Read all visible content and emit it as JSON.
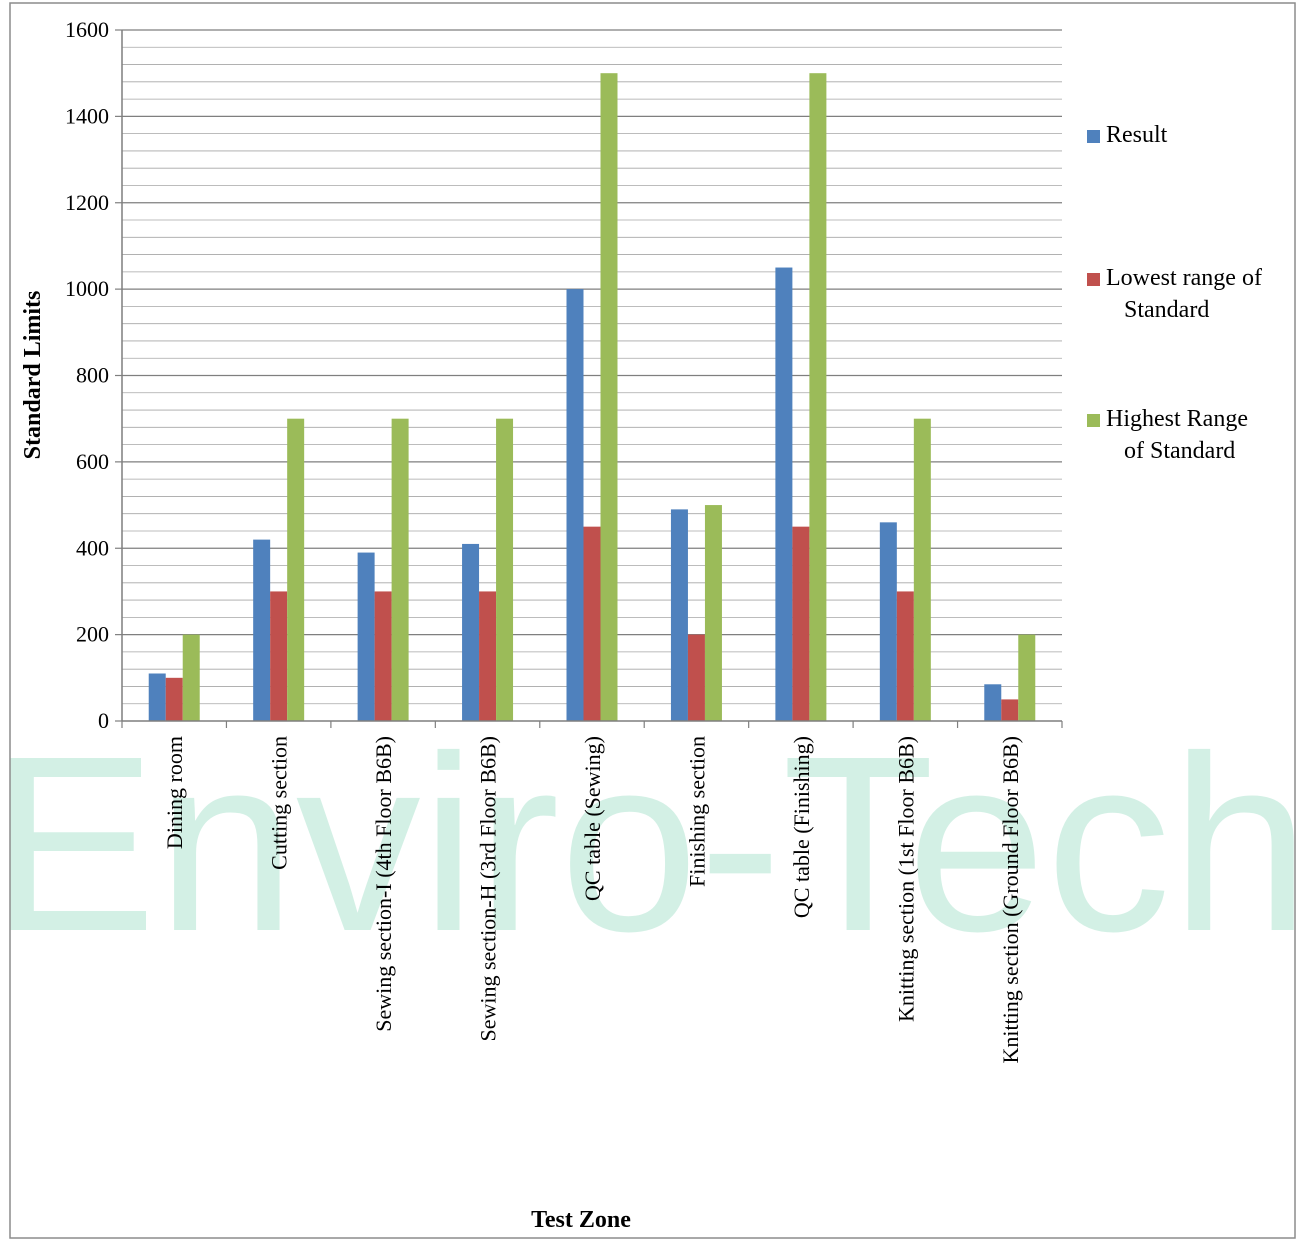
{
  "watermark": "Enviro-Tech",
  "chart_data": {
    "type": "bar",
    "xlabel": "Test Zone",
    "ylabel": "Standard Limits",
    "ylim": [
      0,
      1600
    ],
    "yticks": [
      0,
      200,
      400,
      600,
      800,
      1000,
      1200,
      1400,
      1600
    ],
    "grid": true,
    "legend_position": "right",
    "categories": [
      "Dining room",
      "Cutting section",
      "Sewing section-I (4th Floor B6B)",
      "Sewing section-H (3rd Floor B6B)",
      "QC table (Sewing)",
      "Finishing section",
      "QC table (Finishing)",
      "Knitting section (1st Floor B6B)",
      "Knitting section (Ground Floor B6B)"
    ],
    "series": [
      {
        "name": "Result",
        "color": "#4f81bd",
        "values": [
          110,
          420,
          390,
          410,
          1000,
          490,
          1050,
          460,
          85
        ]
      },
      {
        "name": "Lowest range of Standard",
        "color": "#c0504d",
        "values": [
          100,
          300,
          300,
          300,
          450,
          200,
          450,
          300,
          50
        ]
      },
      {
        "name": "Highest Range of Standard",
        "color": "#9bbb59",
        "values": [
          200,
          700,
          700,
          700,
          1500,
          500,
          1500,
          700,
          200
        ]
      }
    ]
  }
}
